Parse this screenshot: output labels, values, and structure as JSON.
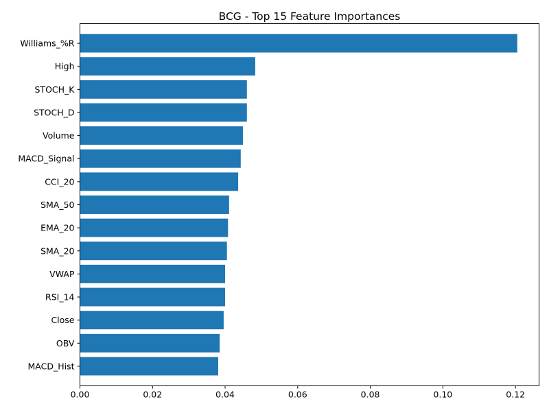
{
  "chart_data": {
    "type": "bar",
    "orientation": "horizontal",
    "title": "BCG - Top 15 Feature Importances",
    "xlabel": "",
    "ylabel": "",
    "xlim": [
      0.0,
      0.1265
    ],
    "xticks": [
      0.0,
      0.02,
      0.04,
      0.06,
      0.08,
      0.1,
      0.12
    ],
    "xtick_labels": [
      "0.00",
      "0.02",
      "0.04",
      "0.06",
      "0.08",
      "0.10",
      "0.12"
    ],
    "grid": false,
    "legend": "none",
    "bar_color": "#1f77b4",
    "categories": [
      "Williams_%R",
      "High",
      "STOCH_K",
      "STOCH_D",
      "Volume",
      "MACD_Signal",
      "CCI_20",
      "SMA_50",
      "EMA_20",
      "SMA_20",
      "VWAP",
      "RSI_14",
      "Close",
      "OBV",
      "MACD_Hist"
    ],
    "values": [
      0.1205,
      0.0483,
      0.046,
      0.046,
      0.0449,
      0.0443,
      0.0436,
      0.0411,
      0.0408,
      0.0405,
      0.04,
      0.04,
      0.0396,
      0.0385,
      0.0381
    ]
  }
}
